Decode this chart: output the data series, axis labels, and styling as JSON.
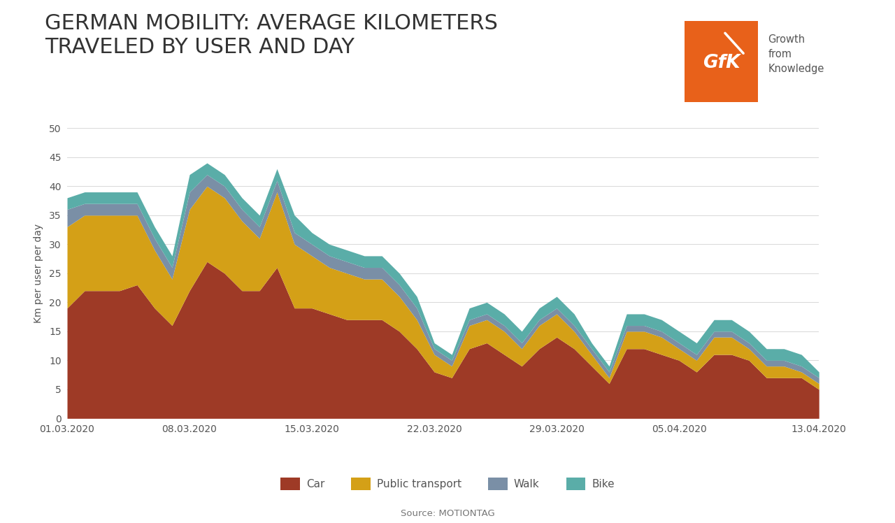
{
  "title": "GERMAN MOBILITY: AVERAGE KILOMETERS\nTRAVELED BY USER AND DAY",
  "ylabel": "Km per user per day",
  "source": "Source: MOTIONTAG",
  "colors": {
    "car": "#9e3a26",
    "public_transport": "#d4a017",
    "walk": "#7a8fa6",
    "bike": "#5aada8"
  },
  "background": "#ffffff",
  "ylim": [
    0,
    50
  ],
  "yticks": [
    0,
    5,
    10,
    15,
    20,
    25,
    30,
    35,
    40,
    45,
    50
  ],
  "dates": [
    "2020-03-01",
    "2020-03-02",
    "2020-03-03",
    "2020-03-04",
    "2020-03-05",
    "2020-03-06",
    "2020-03-07",
    "2020-03-08",
    "2020-03-09",
    "2020-03-10",
    "2020-03-11",
    "2020-03-12",
    "2020-03-13",
    "2020-03-14",
    "2020-03-15",
    "2020-03-16",
    "2020-03-17",
    "2020-03-18",
    "2020-03-19",
    "2020-03-20",
    "2020-03-21",
    "2020-03-22",
    "2020-03-23",
    "2020-03-24",
    "2020-03-25",
    "2020-03-26",
    "2020-03-27",
    "2020-03-28",
    "2020-03-29",
    "2020-03-30",
    "2020-03-31",
    "2020-04-01",
    "2020-04-02",
    "2020-04-03",
    "2020-04-04",
    "2020-04-05",
    "2020-04-06",
    "2020-04-07",
    "2020-04-08",
    "2020-04-09",
    "2020-04-10",
    "2020-04-11",
    "2020-04-12",
    "2020-04-13"
  ],
  "car": [
    19,
    22,
    22,
    22,
    23,
    19,
    16,
    22,
    27,
    25,
    22,
    22,
    26,
    19,
    19,
    18,
    17,
    17,
    17,
    15,
    12,
    8,
    7,
    12,
    13,
    11,
    9,
    12,
    14,
    12,
    9,
    6,
    12,
    12,
    11,
    10,
    8,
    11,
    11,
    10,
    7,
    7,
    7,
    5
  ],
  "public_transport": [
    14,
    13,
    13,
    13,
    12,
    10,
    8,
    14,
    13,
    13,
    12,
    9,
    13,
    11,
    9,
    8,
    8,
    7,
    7,
    6,
    5,
    3,
    2,
    4,
    4,
    4,
    3,
    4,
    4,
    3,
    2,
    1,
    3,
    3,
    3,
    2,
    2,
    3,
    3,
    2,
    2,
    2,
    1,
    1
  ],
  "walk": [
    3,
    2,
    2,
    2,
    2,
    2,
    2,
    3,
    2,
    2,
    2,
    2,
    2,
    2,
    2,
    2,
    2,
    2,
    2,
    2,
    2,
    1,
    1,
    1,
    1,
    1,
    1,
    1,
    1,
    1,
    1,
    1,
    1,
    1,
    1,
    1,
    1,
    1,
    1,
    1,
    1,
    1,
    1,
    1
  ],
  "bike": [
    2,
    2,
    2,
    2,
    2,
    2,
    2,
    3,
    2,
    2,
    2,
    2,
    2,
    3,
    2,
    2,
    2,
    2,
    2,
    2,
    2,
    1,
    1,
    2,
    2,
    2,
    2,
    2,
    2,
    2,
    1,
    1,
    2,
    2,
    2,
    2,
    2,
    2,
    2,
    2,
    2,
    2,
    2,
    1
  ],
  "xtick_labels": [
    "01.03.2020",
    "08.03.2020",
    "15.03.2020",
    "22.03.2020",
    "29.03.2020",
    "05.04.2020",
    "13.04.2020"
  ],
  "xtick_positions": [
    0,
    7,
    14,
    21,
    28,
    35,
    43
  ],
  "gfk_orange": "#e8611a",
  "gfk_text": "Growth\nfrom\nKnowledge",
  "title_fontsize": 22,
  "axis_label_fontsize": 10,
  "legend_fontsize": 11
}
